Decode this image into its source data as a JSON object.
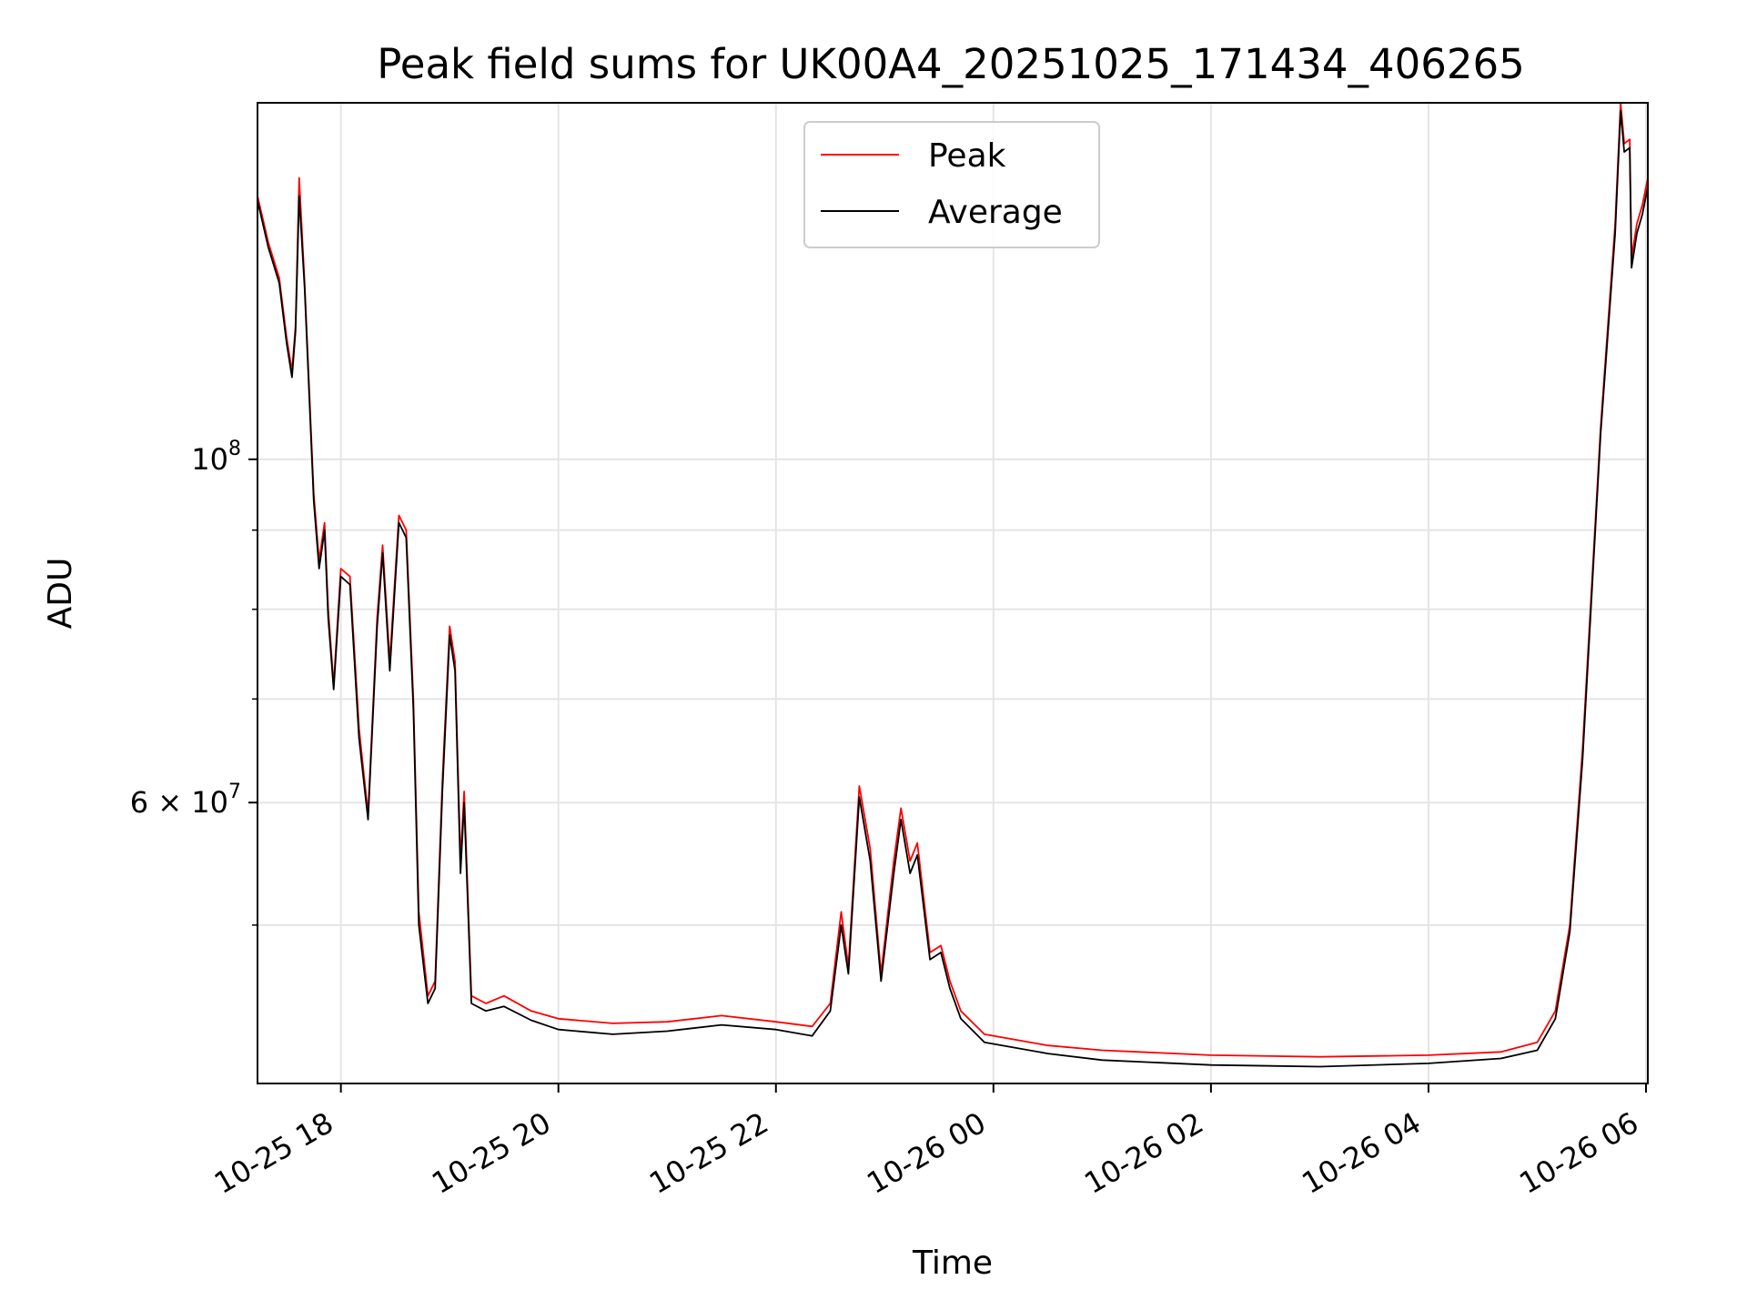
{
  "chart_data": {
    "type": "line",
    "title": "Peak field sums for UK00A4_20251025_171434_406265",
    "xlabel": "Time",
    "ylabel": "ADU",
    "yscale": "log",
    "grid": true,
    "legend_position": "top-center",
    "xlim": [
      "2025-10-25 17:14",
      "2025-10-26 06:01"
    ],
    "ylim": [
      39500000,
      170000000
    ],
    "x_ticks": [
      {
        "value": "2025-10-25 18:00",
        "label": "10-25 18"
      },
      {
        "value": "2025-10-25 20:00",
        "label": "10-25 20"
      },
      {
        "value": "2025-10-25 22:00",
        "label": "10-25 22"
      },
      {
        "value": "2025-10-26 00:00",
        "label": "10-26 00"
      },
      {
        "value": "2025-10-26 02:00",
        "label": "10-26 02"
      },
      {
        "value": "2025-10-26 04:00",
        "label": "10-26 04"
      },
      {
        "value": "2025-10-26 06:00",
        "label": "10-26 06"
      }
    ],
    "y_major_ticks": [
      {
        "value": 100000000,
        "label_base": "10",
        "label_exp": "8"
      },
      {
        "value": 60000000,
        "label_base": "6 × 10",
        "label_exp": "7"
      }
    ],
    "y_minor_ticks": [
      50000000,
      70000000,
      80000000,
      90000000
    ],
    "series": [
      {
        "name": "Peak",
        "color": "#ff0000",
        "points": [
          [
            "2025-10-25 17:14",
            148000000
          ],
          [
            "2025-10-25 17:20",
            138000000
          ],
          [
            "2025-10-25 17:26",
            131000000
          ],
          [
            "2025-10-25 17:30",
            120000000
          ],
          [
            "2025-10-25 17:33",
            114000000
          ],
          [
            "2025-10-25 17:35",
            122000000
          ],
          [
            "2025-10-25 17:37",
            152000000
          ],
          [
            "2025-10-25 17:40",
            130000000
          ],
          [
            "2025-10-25 17:45",
            95000000
          ],
          [
            "2025-10-25 17:48",
            86000000
          ],
          [
            "2025-10-25 17:51",
            91000000
          ],
          [
            "2025-10-25 17:53",
            80000000
          ],
          [
            "2025-10-25 17:56",
            71500000
          ],
          [
            "2025-10-25 18:00",
            85000000
          ],
          [
            "2025-10-25 18:05",
            84000000
          ],
          [
            "2025-10-25 18:10",
            67000000
          ],
          [
            "2025-10-25 18:15",
            59000000
          ],
          [
            "2025-10-25 18:20",
            79000000
          ],
          [
            "2025-10-25 18:23",
            88000000
          ],
          [
            "2025-10-25 18:27",
            74000000
          ],
          [
            "2025-10-25 18:32",
            92000000
          ],
          [
            "2025-10-25 18:36",
            90000000
          ],
          [
            "2025-10-25 18:40",
            70000000
          ],
          [
            "2025-10-25 18:43",
            51000000
          ],
          [
            "2025-10-25 18:48",
            45000000
          ],
          [
            "2025-10-25 18:52",
            46000000
          ],
          [
            "2025-10-25 18:56",
            62000000
          ],
          [
            "2025-10-25 19:00",
            78000000
          ],
          [
            "2025-10-25 19:03",
            74000000
          ],
          [
            "2025-10-25 19:06",
            55000000
          ],
          [
            "2025-10-25 19:08",
            61000000
          ],
          [
            "2025-10-25 19:12",
            45000000
          ],
          [
            "2025-10-25 19:20",
            44500000
          ],
          [
            "2025-10-25 19:30",
            45000000
          ],
          [
            "2025-10-25 19:45",
            44000000
          ],
          [
            "2025-10-25 20:00",
            43500000
          ],
          [
            "2025-10-25 20:30",
            43200000
          ],
          [
            "2025-10-25 21:00",
            43300000
          ],
          [
            "2025-10-25 21:30",
            43700000
          ],
          [
            "2025-10-25 22:00",
            43300000
          ],
          [
            "2025-10-25 22:20",
            43000000
          ],
          [
            "2025-10-25 22:30",
            44500000
          ],
          [
            "2025-10-25 22:36",
            51000000
          ],
          [
            "2025-10-25 22:40",
            47000000
          ],
          [
            "2025-10-25 22:46",
            61500000
          ],
          [
            "2025-10-25 22:52",
            56000000
          ],
          [
            "2025-10-25 22:58",
            46500000
          ],
          [
            "2025-10-25 23:05",
            55000000
          ],
          [
            "2025-10-25 23:09",
            59500000
          ],
          [
            "2025-10-25 23:14",
            55000000
          ],
          [
            "2025-10-25 23:18",
            56500000
          ],
          [
            "2025-10-25 23:25",
            48000000
          ],
          [
            "2025-10-25 23:31",
            48500000
          ],
          [
            "2025-10-25 23:36",
            46000000
          ],
          [
            "2025-10-25 23:42",
            44000000
          ],
          [
            "2025-10-25 23:55",
            42500000
          ],
          [
            "2025-10-26 00:30",
            41800000
          ],
          [
            "2025-10-26 01:00",
            41500000
          ],
          [
            "2025-10-26 02:00",
            41200000
          ],
          [
            "2025-10-26 03:00",
            41100000
          ],
          [
            "2025-10-26 04:00",
            41200000
          ],
          [
            "2025-10-26 04:40",
            41400000
          ],
          [
            "2025-10-26 05:00",
            42000000
          ],
          [
            "2025-10-26 05:10",
            44000000
          ],
          [
            "2025-10-26 05:18",
            50000000
          ],
          [
            "2025-10-26 05:25",
            65000000
          ],
          [
            "2025-10-26 05:35",
            105000000
          ],
          [
            "2025-10-26 05:43",
            142000000
          ],
          [
            "2025-10-26 05:46",
            170000000
          ],
          [
            "2025-10-26 05:48",
            160000000
          ],
          [
            "2025-10-26 05:51",
            161000000
          ],
          [
            "2025-10-26 05:52",
            135000000
          ],
          [
            "2025-10-26 05:55",
            142000000
          ],
          [
            "2025-10-26 05:58",
            146000000
          ],
          [
            "2025-10-26 06:01",
            152000000
          ]
        ]
      },
      {
        "name": "Average",
        "color": "#000000",
        "points": [
          [
            "2025-10-25 17:14",
            147000000
          ],
          [
            "2025-10-25 17:20",
            137000000
          ],
          [
            "2025-10-25 17:26",
            130000000
          ],
          [
            "2025-10-25 17:30",
            119000000
          ],
          [
            "2025-10-25 17:33",
            113000000
          ],
          [
            "2025-10-25 17:35",
            121000000
          ],
          [
            "2025-10-25 17:37",
            148000000
          ],
          [
            "2025-10-25 17:40",
            129000000
          ],
          [
            "2025-10-25 17:45",
            94000000
          ],
          [
            "2025-10-25 17:48",
            85000000
          ],
          [
            "2025-10-25 17:51",
            90000000
          ],
          [
            "2025-10-25 17:53",
            79000000
          ],
          [
            "2025-10-25 17:56",
            71000000
          ],
          [
            "2025-10-25 18:00",
            84000000
          ],
          [
            "2025-10-25 18:05",
            83000000
          ],
          [
            "2025-10-25 18:10",
            66000000
          ],
          [
            "2025-10-25 18:15",
            58500000
          ],
          [
            "2025-10-25 18:20",
            78000000
          ],
          [
            "2025-10-25 18:23",
            87000000
          ],
          [
            "2025-10-25 18:27",
            73000000
          ],
          [
            "2025-10-25 18:32",
            91000000
          ],
          [
            "2025-10-25 18:36",
            89000000
          ],
          [
            "2025-10-25 18:40",
            69000000
          ],
          [
            "2025-10-25 18:43",
            50000000
          ],
          [
            "2025-10-25 18:48",
            44500000
          ],
          [
            "2025-10-25 18:52",
            45500000
          ],
          [
            "2025-10-25 18:56",
            61000000
          ],
          [
            "2025-10-25 19:00",
            77000000
          ],
          [
            "2025-10-25 19:03",
            73000000
          ],
          [
            "2025-10-25 19:06",
            54000000
          ],
          [
            "2025-10-25 19:08",
            60000000
          ],
          [
            "2025-10-25 19:12",
            44500000
          ],
          [
            "2025-10-25 19:20",
            44000000
          ],
          [
            "2025-10-25 19:30",
            44300000
          ],
          [
            "2025-10-25 19:45",
            43400000
          ],
          [
            "2025-10-25 20:00",
            42800000
          ],
          [
            "2025-10-25 20:30",
            42500000
          ],
          [
            "2025-10-25 21:00",
            42700000
          ],
          [
            "2025-10-25 21:30",
            43100000
          ],
          [
            "2025-10-25 22:00",
            42800000
          ],
          [
            "2025-10-25 22:20",
            42400000
          ],
          [
            "2025-10-25 22:30",
            44000000
          ],
          [
            "2025-10-25 22:36",
            50000000
          ],
          [
            "2025-10-25 22:40",
            46500000
          ],
          [
            "2025-10-25 22:46",
            60500000
          ],
          [
            "2025-10-25 22:52",
            55000000
          ],
          [
            "2025-10-25 22:58",
            46000000
          ],
          [
            "2025-10-25 23:05",
            54000000
          ],
          [
            "2025-10-25 23:09",
            58500000
          ],
          [
            "2025-10-25 23:14",
            54000000
          ],
          [
            "2025-10-25 23:18",
            55500000
          ],
          [
            "2025-10-25 23:25",
            47500000
          ],
          [
            "2025-10-25 23:31",
            48000000
          ],
          [
            "2025-10-25 23:36",
            45500000
          ],
          [
            "2025-10-25 23:42",
            43500000
          ],
          [
            "2025-10-25 23:55",
            42000000
          ],
          [
            "2025-10-26 00:30",
            41300000
          ],
          [
            "2025-10-26 01:00",
            40900000
          ],
          [
            "2025-10-26 02:00",
            40600000
          ],
          [
            "2025-10-26 03:00",
            40500000
          ],
          [
            "2025-10-26 04:00",
            40700000
          ],
          [
            "2025-10-26 04:40",
            41000000
          ],
          [
            "2025-10-26 05:00",
            41500000
          ],
          [
            "2025-10-26 05:10",
            43500000
          ],
          [
            "2025-10-26 05:18",
            49500000
          ],
          [
            "2025-10-26 05:25",
            64000000
          ],
          [
            "2025-10-26 05:35",
            104000000
          ],
          [
            "2025-10-26 05:43",
            140000000
          ],
          [
            "2025-10-26 05:46",
            168000000
          ],
          [
            "2025-10-26 05:48",
            158000000
          ],
          [
            "2025-10-26 05:51",
            159000000
          ],
          [
            "2025-10-26 05:52",
            133000000
          ],
          [
            "2025-10-26 05:55",
            140000000
          ],
          [
            "2025-10-26 05:58",
            144000000
          ],
          [
            "2025-10-26 06:01",
            150000000
          ]
        ]
      }
    ]
  }
}
